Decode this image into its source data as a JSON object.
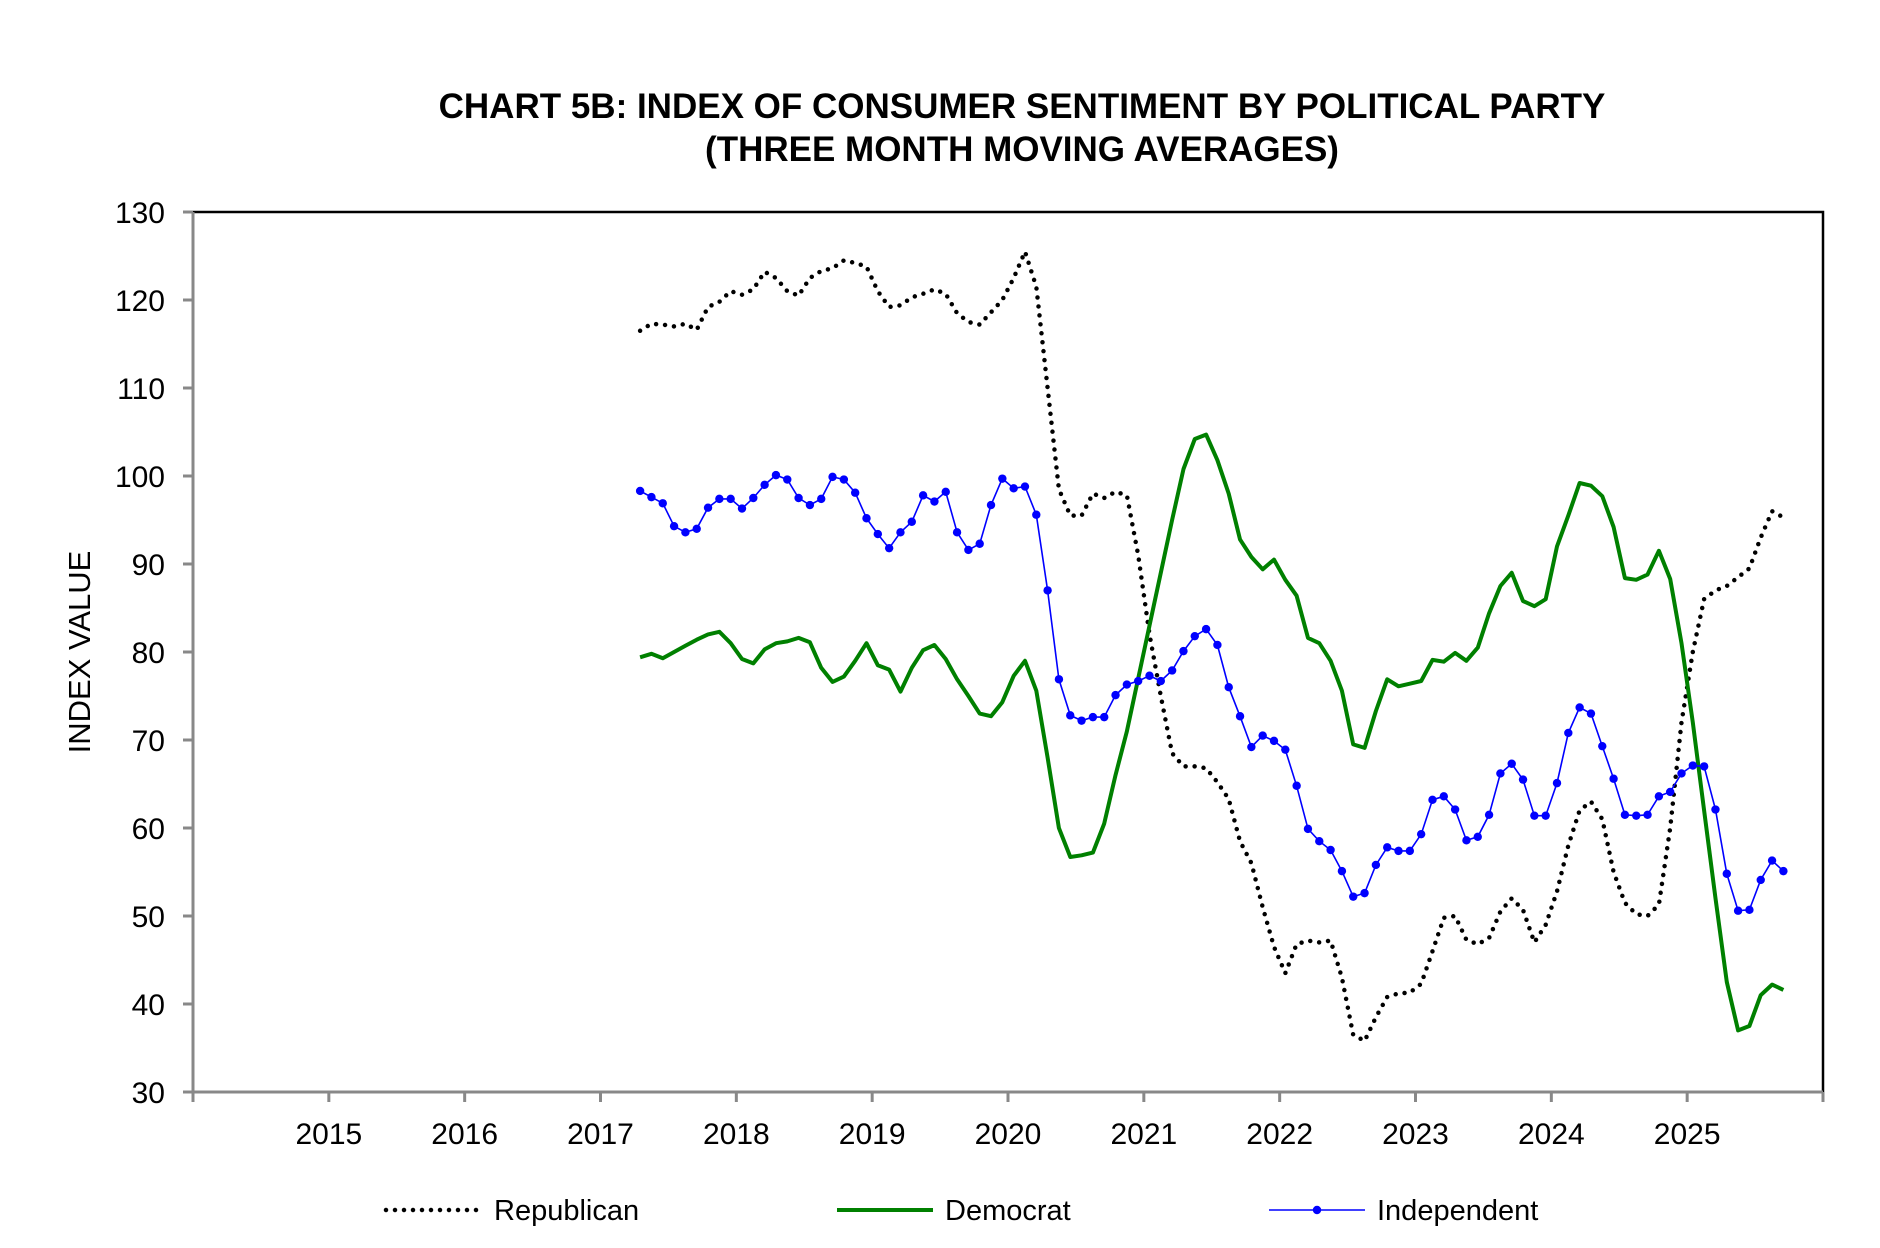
{
  "chart_data": {
    "type": "line",
    "title": "CHART 5B: INDEX OF CONSUMER SENTIMENT BY POLITICAL PARTY",
    "subtitle": "(THREE MONTH MOVING AVERAGES)",
    "xlabel": "",
    "ylabel": "INDEX VALUE",
    "ylim": [
      30,
      130
    ],
    "yticks": [
      "30",
      "40",
      "50",
      "60",
      "70",
      "80",
      "90",
      "100",
      "110",
      "120",
      "130"
    ],
    "xlim": [
      2014,
      2026
    ],
    "xticks": [
      "2015",
      "2016",
      "2017",
      "2018",
      "2019",
      "2020",
      "2021",
      "2022",
      "2023",
      "2024",
      "2025"
    ],
    "x_start": {
      "year": 2017,
      "month": 4
    },
    "x_frequency": "monthly",
    "grid": false,
    "legend_position": "bottom",
    "series": [
      {
        "name": "Republican",
        "color": "#000000",
        "style": "dotted",
        "values": [
          116.5,
          117.3,
          117.2,
          117.0,
          117.3,
          116.6,
          119.2,
          119.8,
          121.0,
          120.6,
          121.2,
          123.2,
          122.5,
          121.0,
          120.5,
          122.5,
          123.3,
          123.6,
          124.5,
          124.2,
          123.8,
          121.0,
          119.2,
          119.4,
          120.3,
          120.7,
          121.2,
          120.7,
          118.5,
          117.5,
          117.2,
          118.6,
          120.0,
          122.5,
          125.5,
          121.5,
          110.0,
          98.5,
          95.5,
          95.5,
          98.0,
          97.5,
          98.2,
          97.8,
          91.0,
          82.0,
          75.0,
          68.5,
          67.0,
          67.0,
          66.8,
          65.2,
          63.3,
          58.5,
          56.0,
          51.0,
          46.5,
          43.5,
          46.8,
          47.2,
          47.0,
          47.2,
          43.0,
          36.5,
          35.8,
          38.5,
          40.8,
          41.2,
          41.3,
          42.3,
          46.0,
          49.8,
          50.0,
          47.3,
          46.8,
          47.5,
          50.5,
          52.0,
          50.7,
          47.0,
          49.0,
          52.8,
          58.0,
          62.0,
          63.0,
          61.0,
          55.0,
          51.5,
          50.2,
          50.0,
          51.3,
          60.0,
          72.0,
          80.0,
          86.0,
          87.0,
          87.5,
          88.5,
          89.5,
          93.0,
          96.0,
          95.3
        ]
      },
      {
        "name": "Democrat",
        "color": "#008000",
        "style": "solid",
        "values": [
          79.4,
          79.8,
          79.3,
          80.0,
          80.7,
          81.4,
          82.0,
          82.3,
          81.0,
          79.2,
          78.7,
          80.3,
          81.0,
          81.2,
          81.6,
          81.1,
          78.2,
          76.6,
          77.2,
          79.0,
          81.0,
          78.5,
          78.0,
          75.5,
          78.2,
          80.2,
          80.8,
          79.2,
          76.9,
          75.0,
          73.0,
          72.7,
          74.3,
          77.3,
          79.0,
          75.6,
          68.0,
          60.0,
          56.7,
          56.9,
          57.2,
          60.5,
          66.0,
          71.0,
          77.0,
          83.0,
          89.0,
          95.0,
          100.8,
          104.2,
          104.7,
          101.8,
          98.0,
          92.8,
          90.8,
          89.4,
          90.5,
          88.2,
          86.4,
          81.6,
          81.0,
          79.0,
          75.6,
          69.5,
          69.1,
          73.3,
          76.9,
          76.1,
          76.4,
          76.7,
          79.1,
          78.9,
          79.9,
          79.0,
          80.5,
          84.4,
          87.5,
          89.0,
          85.8,
          85.2,
          86.0,
          92.0,
          95.5,
          99.2,
          98.9,
          97.7,
          94.2,
          88.4,
          88.2,
          88.8,
          91.5,
          88.3,
          81.0,
          72.0,
          62.0,
          52.0,
          42.5,
          37.0,
          37.5,
          41.0,
          42.2,
          41.6
        ]
      },
      {
        "name": "Independent",
        "color": "#0000ff",
        "style": "solid-markers",
        "values": [
          98.3,
          97.6,
          96.9,
          94.3,
          93.6,
          94.0,
          96.4,
          97.4,
          97.4,
          96.3,
          97.5,
          99.0,
          100.1,
          99.6,
          97.5,
          96.7,
          97.4,
          99.9,
          99.6,
          98.1,
          95.2,
          93.4,
          91.8,
          93.6,
          94.8,
          97.8,
          97.1,
          98.2,
          93.6,
          91.6,
          92.3,
          96.7,
          99.7,
          98.6,
          98.8,
          95.6,
          87.0,
          76.9,
          72.8,
          72.2,
          72.6,
          72.6,
          75.1,
          76.3,
          76.7,
          77.3,
          76.7,
          77.9,
          80.1,
          81.8,
          82.6,
          80.8,
          76.0,
          72.7,
          69.2,
          70.5,
          69.9,
          68.9,
          64.8,
          59.9,
          58.5,
          57.5,
          55.1,
          52.2,
          52.6,
          55.8,
          57.8,
          57.4,
          57.4,
          59.3,
          63.2,
          63.6,
          62.1,
          58.6,
          59.0,
          61.5,
          66.2,
          67.3,
          65.5,
          61.4,
          61.4,
          65.1,
          70.8,
          73.7,
          73.0,
          69.3,
          65.6,
          61.5,
          61.4,
          61.5,
          63.6,
          64.1,
          66.2,
          67.1,
          67.0,
          62.1,
          54.8,
          50.6,
          50.7,
          54.1,
          56.3,
          55.1
        ]
      }
    ]
  }
}
